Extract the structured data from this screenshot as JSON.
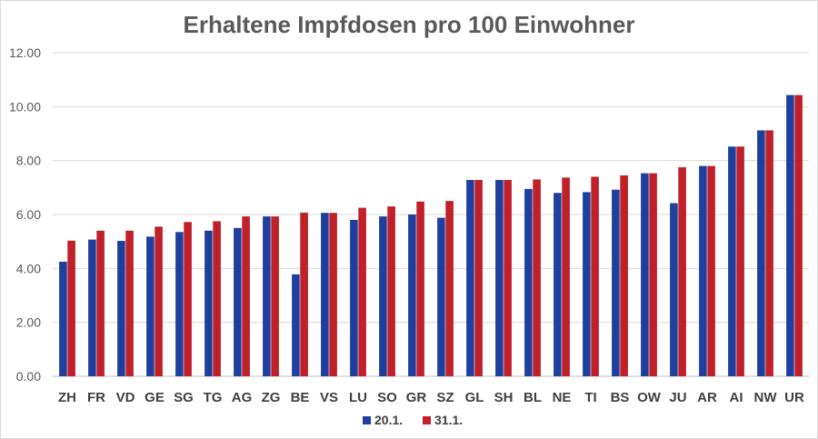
{
  "chart_data": {
    "type": "bar",
    "title": "Erhaltene Impfdosen pro 100 Einwohner",
    "xlabel": "",
    "ylabel": "",
    "ylim": [
      0,
      12
    ],
    "yticks": [
      "0.00",
      "2.00",
      "4.00",
      "6.00",
      "8.00",
      "10.00",
      "12.00"
    ],
    "grid": true,
    "legend_position": "bottom",
    "categories": [
      "ZH",
      "FR",
      "VD",
      "GE",
      "SG",
      "TG",
      "AG",
      "ZG",
      "BE",
      "VS",
      "LU",
      "SO",
      "GR",
      "SZ",
      "GL",
      "SH",
      "BL",
      "NE",
      "TI",
      "BS",
      "OW",
      "JU",
      "AR",
      "AI",
      "NW",
      "UR"
    ],
    "series": [
      {
        "name": "20.1.",
        "color": "#1f3f9e",
        "values": [
          4.25,
          5.07,
          5.02,
          5.18,
          5.35,
          5.4,
          5.5,
          5.93,
          3.78,
          6.06,
          5.8,
          5.93,
          6.0,
          5.88,
          7.28,
          7.28,
          6.95,
          6.8,
          6.83,
          6.92,
          7.53,
          6.42,
          7.8,
          8.52,
          9.12,
          10.43
        ]
      },
      {
        "name": "31.1.",
        "color": "#c0202a",
        "values": [
          5.03,
          5.4,
          5.4,
          5.55,
          5.72,
          5.75,
          5.93,
          5.93,
          6.07,
          6.06,
          6.25,
          6.3,
          6.48,
          6.5,
          7.28,
          7.28,
          7.3,
          7.37,
          7.4,
          7.45,
          7.53,
          7.75,
          7.8,
          8.52,
          9.12,
          10.43
        ]
      }
    ]
  }
}
